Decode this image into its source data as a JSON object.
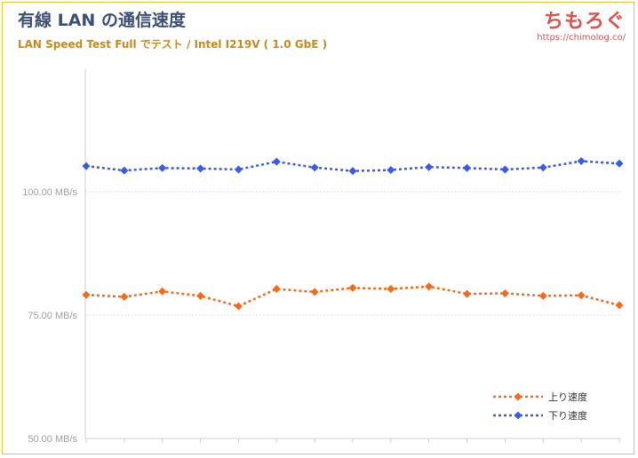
{
  "header": {
    "title": "有線 LAN の通信速度",
    "subtitle": "LAN Speed Test Full でテスト / Intel I219V ( 1.0 GbE )",
    "logo": "ちもろぐ",
    "logo_url": "https://chimolog.co/"
  },
  "chart_data": {
    "type": "line",
    "title": "有線 LAN の通信速度",
    "subtitle": "LAN Speed Test Full でテスト / Intel I219V ( 1.0 GbE )",
    "xlabel": "",
    "ylabel": "",
    "ylim": [
      50,
      125
    ],
    "yticks": [
      {
        "value": 50,
        "label": "50.00 MB/s"
      },
      {
        "value": 75,
        "label": "75.00 MB/s"
      },
      {
        "value": 100,
        "label": "100.00 MB/s"
      }
    ],
    "grid": true,
    "legend_position": "bottom-right",
    "series": [
      {
        "name": "上り速度",
        "color": "#f26b1d",
        "values": [
          79.1,
          78.7,
          79.8,
          78.9,
          76.8,
          80.3,
          79.7,
          80.5,
          80.3,
          80.8,
          79.3,
          79.4,
          78.9,
          79.0,
          77.0
        ]
      },
      {
        "name": "下り速度",
        "color": "#3a5ae8",
        "values": [
          105.2,
          104.3,
          104.8,
          104.7,
          104.5,
          106.1,
          104.9,
          104.2,
          104.4,
          105.0,
          104.8,
          104.5,
          104.9,
          106.2,
          105.7
        ]
      }
    ]
  }
}
